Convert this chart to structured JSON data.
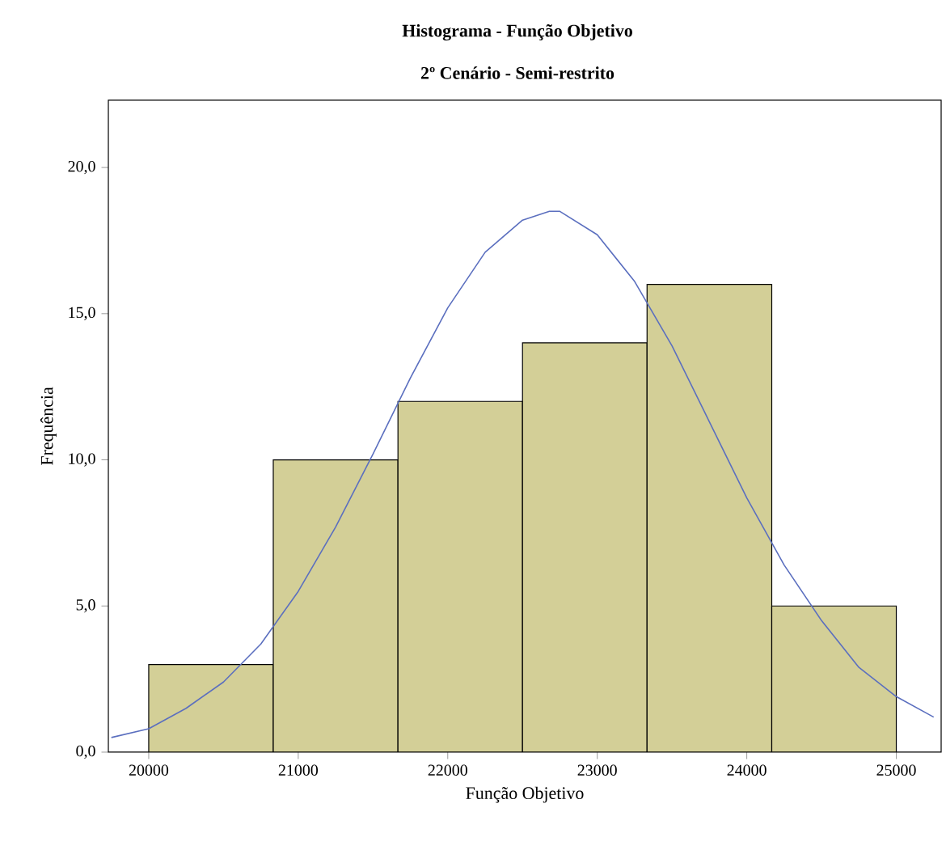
{
  "chart_data": {
    "type": "histogram",
    "title": "Histograma - Função Objetivo",
    "subtitle": "2º Cenário - Semi-restrito",
    "xlabel": "Função Objetivo",
    "ylabel": "Frequência",
    "bins": [
      20000,
      20833,
      21667,
      22500,
      23333,
      24167,
      25000
    ],
    "values": [
      3,
      10,
      12,
      14,
      16,
      5
    ],
    "color": "#d3cf97",
    "series": [
      {
        "type": "line",
        "color": "#5b6fbf",
        "x": [
          19750,
          20000,
          20250,
          20500,
          20750,
          21000,
          21250,
          21500,
          21750,
          22000,
          22250,
          22500,
          22680,
          22750,
          23000,
          23250,
          23500,
          23750,
          24000,
          24250,
          24500,
          24750,
          25000,
          25250
        ],
        "values": [
          0.5,
          0.8,
          1.5,
          2.4,
          3.7,
          5.5,
          7.7,
          10.2,
          12.8,
          15.2,
          17.1,
          18.2,
          18.5,
          18.5,
          17.7,
          16.1,
          13.9,
          11.3,
          8.7,
          6.4,
          4.5,
          2.9,
          1.9,
          1.2
        ]
      }
    ],
    "xlim": [
      19730,
      25300
    ],
    "ylim": [
      0,
      22.3
    ],
    "xticks": [
      20000,
      21000,
      22000,
      23000,
      24000,
      25000
    ],
    "yticks": [
      {
        "value": 0,
        "label": "0,0"
      },
      {
        "value": 5,
        "label": "5,0"
      },
      {
        "value": 10,
        "label": "10,0"
      },
      {
        "value": 15,
        "label": "15,0"
      },
      {
        "value": 20,
        "label": "20,0"
      }
    ]
  }
}
